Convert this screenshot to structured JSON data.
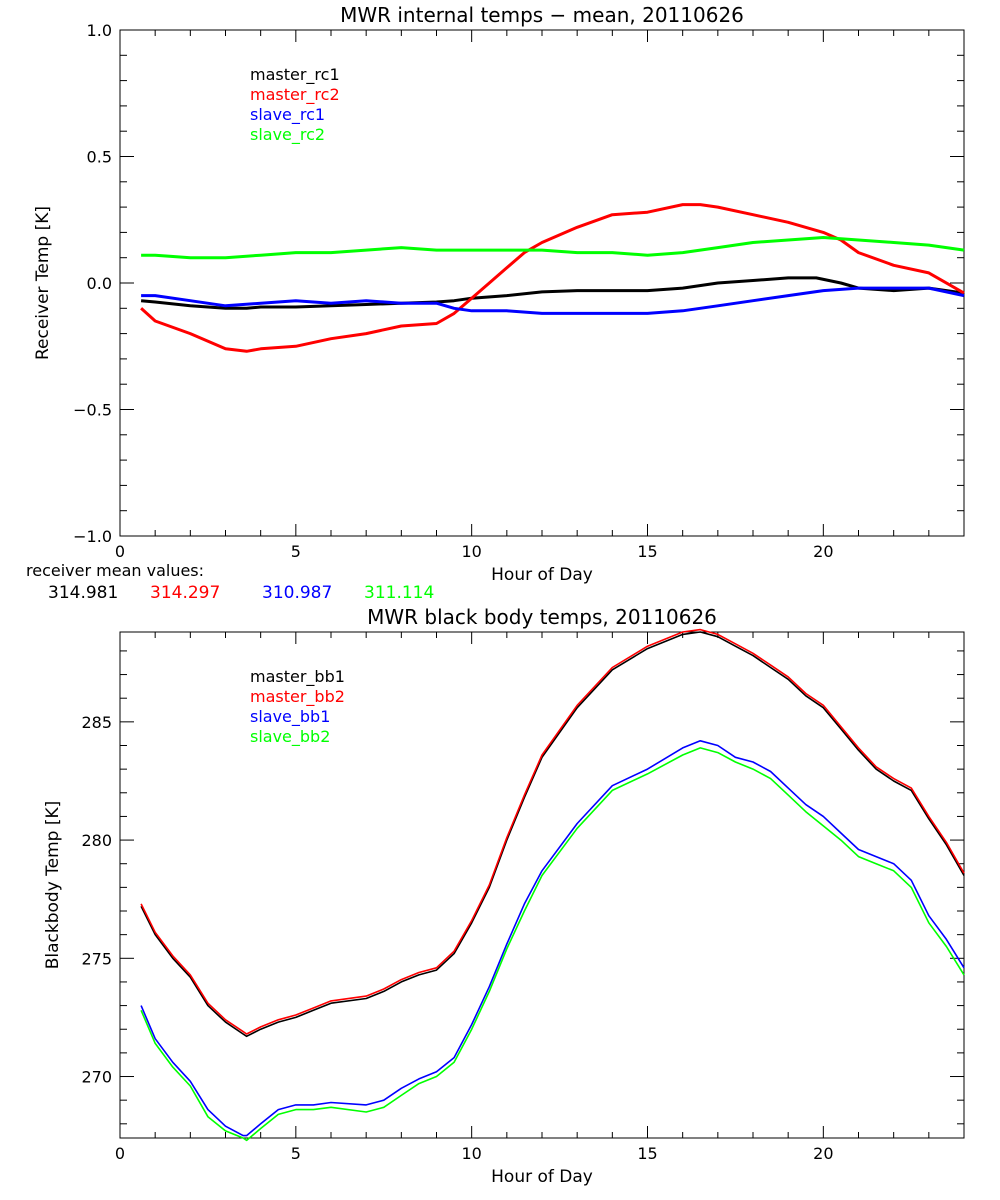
{
  "chart_data": [
    {
      "type": "line",
      "title": "MWR internal temps − mean, 20110626",
      "xlabel": "Hour of Day",
      "ylabel": "Receiver Temp [K]",
      "xlim": [
        0,
        24
      ],
      "ylim": [
        -1.0,
        1.0
      ],
      "xticks": [
        0,
        5,
        10,
        15,
        20
      ],
      "xtick_labels": [
        "0",
        "5",
        "10",
        "15",
        "20"
      ],
      "yticks": [
        -1.0,
        -0.5,
        0.0,
        0.5,
        1.0
      ],
      "ytick_labels": [
        "−1.0",
        "−0.5",
        "0.0",
        "0.5",
        "1.0"
      ],
      "grid": false,
      "legend_position": "top-left",
      "series": [
        {
          "name": "master_rc1",
          "color": "#000000",
          "x": [
            0.6,
            1,
            2,
            3,
            3.6,
            4,
            5,
            6,
            7,
            8,
            9,
            9.5,
            10,
            11,
            12,
            13,
            14,
            15,
            16,
            17,
            18,
            19,
            19.8,
            20.5,
            21,
            22,
            23,
            24
          ],
          "y": [
            -0.07,
            -0.075,
            -0.09,
            -0.1,
            -0.1,
            -0.095,
            -0.095,
            -0.09,
            -0.085,
            -0.08,
            -0.075,
            -0.07,
            -0.06,
            -0.05,
            -0.035,
            -0.03,
            -0.03,
            -0.03,
            -0.02,
            0.0,
            0.01,
            0.02,
            0.02,
            0.0,
            -0.02,
            -0.03,
            -0.02,
            -0.04
          ]
        },
        {
          "name": "master_rc2",
          "color": "#ff0000",
          "x": [
            0.6,
            1,
            2,
            3,
            3.6,
            4,
            5,
            6,
            7,
            8,
            9,
            9.5,
            10,
            10.5,
            11,
            11.5,
            12,
            13,
            14,
            15,
            16,
            16.5,
            17,
            18,
            19,
            20,
            20.5,
            21,
            22,
            23,
            24
          ],
          "y": [
            -0.1,
            -0.15,
            -0.2,
            -0.26,
            -0.27,
            -0.26,
            -0.25,
            -0.22,
            -0.2,
            -0.17,
            -0.16,
            -0.12,
            -0.06,
            0.0,
            0.06,
            0.12,
            0.16,
            0.22,
            0.27,
            0.28,
            0.31,
            0.31,
            0.3,
            0.27,
            0.24,
            0.2,
            0.17,
            0.12,
            0.07,
            0.04,
            -0.04
          ]
        },
        {
          "name": "slave_rc1",
          "color": "#0000ff",
          "x": [
            0.6,
            1,
            2,
            3,
            4,
            5,
            6,
            7,
            8,
            9,
            9.5,
            10,
            11,
            12,
            13,
            14,
            15,
            16,
            17,
            18,
            19,
            20,
            21,
            22,
            23,
            24
          ],
          "y": [
            -0.05,
            -0.05,
            -0.07,
            -0.09,
            -0.08,
            -0.07,
            -0.08,
            -0.07,
            -0.08,
            -0.08,
            -0.1,
            -0.11,
            -0.11,
            -0.12,
            -0.12,
            -0.12,
            -0.12,
            -0.11,
            -0.09,
            -0.07,
            -0.05,
            -0.03,
            -0.02,
            -0.02,
            -0.02,
            -0.05
          ]
        },
        {
          "name": "slave_rc2",
          "color": "#00ff00",
          "x": [
            0.6,
            1,
            2,
            3,
            4,
            5,
            6,
            7,
            8,
            9,
            10,
            11,
            12,
            13,
            14,
            15,
            16,
            17,
            18,
            19,
            20,
            21,
            22,
            23,
            24
          ],
          "y": [
            0.11,
            0.11,
            0.1,
            0.1,
            0.11,
            0.12,
            0.12,
            0.13,
            0.14,
            0.13,
            0.13,
            0.13,
            0.13,
            0.12,
            0.12,
            0.11,
            0.12,
            0.14,
            0.16,
            0.17,
            0.18,
            0.17,
            0.16,
            0.15,
            0.13
          ]
        }
      ]
    },
    {
      "type": "line",
      "title": "MWR black body temps, 20110626",
      "xlabel": "Hour of Day",
      "ylabel": "Blackbody Temp [K]",
      "xlim": [
        0,
        24
      ],
      "ylim": [
        267.4,
        288.8
      ],
      "xticks": [
        0,
        5,
        10,
        15,
        20
      ],
      "xtick_labels": [
        "0",
        "5",
        "10",
        "15",
        "20"
      ],
      "yticks": [
        270,
        275,
        280,
        285
      ],
      "ytick_labels": [
        "270",
        "275",
        "280",
        "285"
      ],
      "grid": false,
      "legend_position": "top-left",
      "series": [
        {
          "name": "master_bb1",
          "color": "#000000",
          "x": [
            0.6,
            1,
            1.5,
            2,
            2.5,
            3,
            3.5,
            3.6,
            4,
            4.5,
            5,
            5.5,
            6,
            7,
            7.5,
            8,
            8.5,
            9,
            9.5,
            10,
            10.5,
            11,
            11.5,
            12,
            13,
            14,
            15,
            16,
            16.5,
            17,
            17.5,
            18,
            18.5,
            19,
            19.5,
            20,
            20.5,
            21,
            21.5,
            22,
            22.5,
            23,
            23.5,
            24
          ],
          "y": [
            277.2,
            276.0,
            275.0,
            274.2,
            273.0,
            272.3,
            271.8,
            271.7,
            272.0,
            272.3,
            272.5,
            272.8,
            273.1,
            273.3,
            273.6,
            274.0,
            274.3,
            274.5,
            275.2,
            276.5,
            278.0,
            280.0,
            281.8,
            283.5,
            285.6,
            287.2,
            288.1,
            288.7,
            288.8,
            288.6,
            288.2,
            287.8,
            287.3,
            286.8,
            286.1,
            285.6,
            284.7,
            283.8,
            283.0,
            282.5,
            282.1,
            280.9,
            279.8,
            278.5
          ]
        },
        {
          "name": "master_bb2",
          "color": "#ff0000",
          "x": [
            0.6,
            1,
            1.5,
            2,
            2.5,
            3,
            3.5,
            3.6,
            4,
            4.5,
            5,
            5.5,
            6,
            7,
            7.5,
            8,
            8.5,
            9,
            9.5,
            10,
            10.5,
            11,
            11.5,
            12,
            13,
            14,
            15,
            16,
            16.5,
            17,
            17.5,
            18,
            18.5,
            19,
            19.5,
            20,
            20.5,
            21,
            21.5,
            22,
            22.5,
            23,
            23.5,
            24
          ],
          "y": [
            277.3,
            276.1,
            275.1,
            274.3,
            273.1,
            272.4,
            271.9,
            271.8,
            272.1,
            272.4,
            272.6,
            272.9,
            273.2,
            273.4,
            273.7,
            274.1,
            274.4,
            274.6,
            275.3,
            276.6,
            278.1,
            280.1,
            281.9,
            283.6,
            285.7,
            287.3,
            288.2,
            288.8,
            288.9,
            288.7,
            288.3,
            287.9,
            287.4,
            286.9,
            286.2,
            285.7,
            284.8,
            283.9,
            283.1,
            282.6,
            282.2,
            281.0,
            279.9,
            278.6
          ]
        },
        {
          "name": "slave_bb1",
          "color": "#0000ff",
          "x": [
            0.6,
            1,
            1.5,
            2,
            2.5,
            3,
            3.5,
            3.6,
            4,
            4.5,
            5,
            5.5,
            6,
            7,
            7.5,
            8,
            8.5,
            9,
            9.5,
            10,
            10.5,
            11,
            11.5,
            12,
            13,
            14,
            15,
            16,
            16.5,
            17,
            17.5,
            18,
            18.5,
            19,
            19.5,
            20,
            20.5,
            21,
            21.5,
            22,
            22.5,
            23,
            23.5,
            24
          ],
          "y": [
            273.0,
            271.6,
            270.6,
            269.8,
            268.6,
            267.9,
            267.5,
            267.5,
            268.0,
            268.6,
            268.8,
            268.8,
            268.9,
            268.8,
            269.0,
            269.5,
            269.9,
            270.2,
            270.8,
            272.2,
            273.8,
            275.6,
            277.3,
            278.7,
            280.7,
            282.3,
            283.0,
            283.9,
            284.2,
            284.0,
            283.5,
            283.3,
            282.9,
            282.2,
            281.5,
            281.0,
            280.3,
            279.6,
            279.3,
            279.0,
            278.3,
            276.8,
            275.8,
            274.6
          ]
        },
        {
          "name": "slave_bb2",
          "color": "#00ff00",
          "x": [
            0.6,
            1,
            1.5,
            2,
            2.5,
            3,
            3.5,
            3.6,
            4,
            4.5,
            5,
            5.5,
            6,
            7,
            7.5,
            8,
            8.5,
            9,
            9.5,
            10,
            10.5,
            11,
            11.5,
            12,
            13,
            14,
            15,
            16,
            16.5,
            17,
            17.5,
            18,
            18.5,
            19,
            19.5,
            20,
            20.5,
            21,
            21.5,
            22,
            22.5,
            23,
            23.5,
            24
          ],
          "y": [
            272.8,
            271.4,
            270.4,
            269.6,
            268.3,
            267.7,
            267.4,
            267.3,
            267.8,
            268.4,
            268.6,
            268.6,
            268.7,
            268.5,
            268.7,
            269.2,
            269.7,
            270.0,
            270.6,
            272.0,
            273.6,
            275.4,
            277.0,
            278.5,
            280.5,
            282.1,
            282.8,
            283.6,
            283.9,
            283.7,
            283.3,
            283.0,
            282.6,
            281.9,
            281.2,
            280.6,
            280.0,
            279.3,
            279.0,
            278.7,
            278.0,
            276.5,
            275.5,
            274.3
          ]
        }
      ]
    }
  ],
  "receiver_mean": {
    "label": "receiver mean values:",
    "values": [
      {
        "text": "314.981",
        "color": "#000000"
      },
      {
        "text": "314.297",
        "color": "#ff0000"
      },
      {
        "text": "310.987",
        "color": "#0000ff"
      },
      {
        "text": "311.114",
        "color": "#00ff00"
      }
    ]
  }
}
